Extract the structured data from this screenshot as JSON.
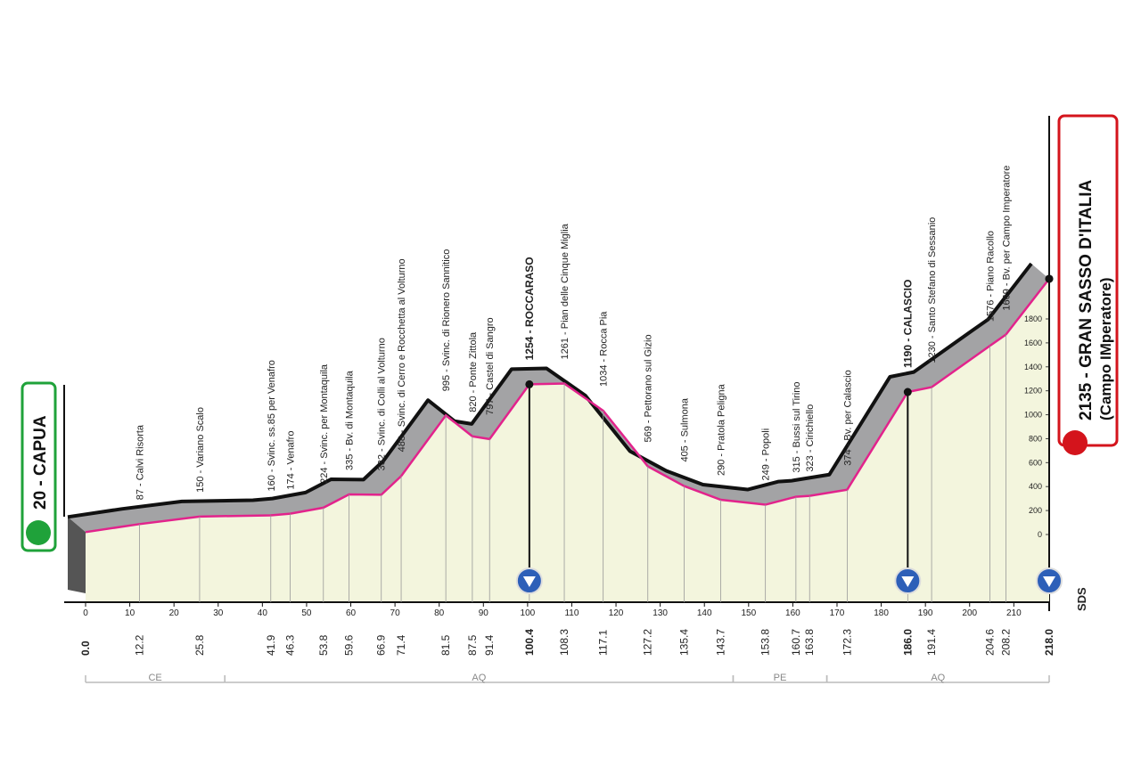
{
  "chart_data": {
    "type": "profile",
    "start": {
      "label": "20 - CAPUA",
      "km": {
        "value": 0,
        "label": "0.0"
      },
      "elevation": 20
    },
    "finish": {
      "label": "2135 - GRAN SASSO D'ITALIA",
      "sublabel": "(Campo IMperatore)",
      "km": {
        "value": 218,
        "label": "218.0"
      },
      "elevation": 2135,
      "kom": true
    },
    "waypoints": [
      {
        "label": "87 - Calvi Risorta",
        "km": 12.2,
        "elevation": 87
      },
      {
        "label": "150 - Variano Scalo",
        "km": 25.8,
        "elevation": 150
      },
      {
        "label": "160 - Svinc. ss.85 per Venafro",
        "km": 41.9,
        "elevation": 160
      },
      {
        "label": "174 - Venafro",
        "km": 46.3,
        "elevation": 174
      },
      {
        "label": "224 - Svinc. per Montaquila",
        "km": 53.8,
        "elevation": 224
      },
      {
        "label": "335 - Bv. di Montaquila",
        "km": 59.6,
        "elevation": 335
      },
      {
        "label": "332 - Svinc. di Colli al Volturno",
        "km": 66.9,
        "elevation": 332
      },
      {
        "label": "488 - Svinc. di Cerro e Rocchetta al Volturno",
        "km": 71.4,
        "elevation": 488
      },
      {
        "label": "995 - Svinc. di Rionero Sannitico",
        "km": 81.5,
        "elevation": 995
      },
      {
        "label": "820 - Ponte Zittola",
        "km": 87.5,
        "elevation": 820
      },
      {
        "label": "797 - Castel di Sangro",
        "km": 91.4,
        "elevation": 797
      },
      {
        "label": "1254 - ROCCARASO",
        "km": 100.4,
        "elevation": 1254,
        "kom": true
      },
      {
        "label": "1261 - Pian delle Cinque Miglia",
        "km": 108.3,
        "elevation": 1261
      },
      {
        "label": "1034 - Rocca Pia",
        "km": 117.1,
        "elevation": 1034
      },
      {
        "label": "569 - Pettorano sul Gizio",
        "km": 127.2,
        "elevation": 569
      },
      {
        "label": "405 - Sulmona",
        "km": 135.4,
        "elevation": 405
      },
      {
        "label": "290 - Pratola Peligna",
        "km": 143.7,
        "elevation": 290
      },
      {
        "label": "249 - Popoli",
        "km": 153.8,
        "elevation": 249
      },
      {
        "label": "315 - Bussi sul Tirino",
        "km": 160.7,
        "elevation": 315
      },
      {
        "label": "323 - Cirichiello",
        "km": 163.8,
        "elevation": 323
      },
      {
        "label": "374 - Bv. per Calascio",
        "km": 172.3,
        "elevation": 374
      },
      {
        "label": "1190 - CALASCIO",
        "km": {
          "value": 186,
          "label": "186.0"
        },
        "elevation": 1190,
        "kom": true
      },
      {
        "label": "1230 - Santo Stefano di Sessanio",
        "km": 191.4,
        "elevation": 1230
      },
      {
        "label": "1576 - Piano Racollo",
        "km": 204.6,
        "elevation": 1576
      },
      {
        "label": "1669 - Bv. per Campo Imperatore",
        "km": 208.2,
        "elevation": 1669
      }
    ],
    "xlim": [
      0,
      218
    ],
    "xticks": [
      0,
      10,
      20,
      30,
      40,
      50,
      60,
      70,
      80,
      90,
      100,
      110,
      120,
      130,
      140,
      150,
      160,
      170,
      180,
      190,
      200,
      210
    ],
    "ylim": [
      0,
      1800
    ],
    "yticks": [
      0,
      200,
      400,
      600,
      800,
      1000,
      1200,
      1400,
      1600,
      1800
    ],
    "regions": [
      {
        "label": "CE",
        "from": 0,
        "to": 31.5
      },
      {
        "label": "AQ",
        "from": 31.5,
        "to": 146.5
      },
      {
        "label": "PE",
        "from": 146.5,
        "to": 167.7
      },
      {
        "label": "AQ",
        "from": 167.7,
        "to": 218
      }
    ],
    "logo": "SDS"
  }
}
